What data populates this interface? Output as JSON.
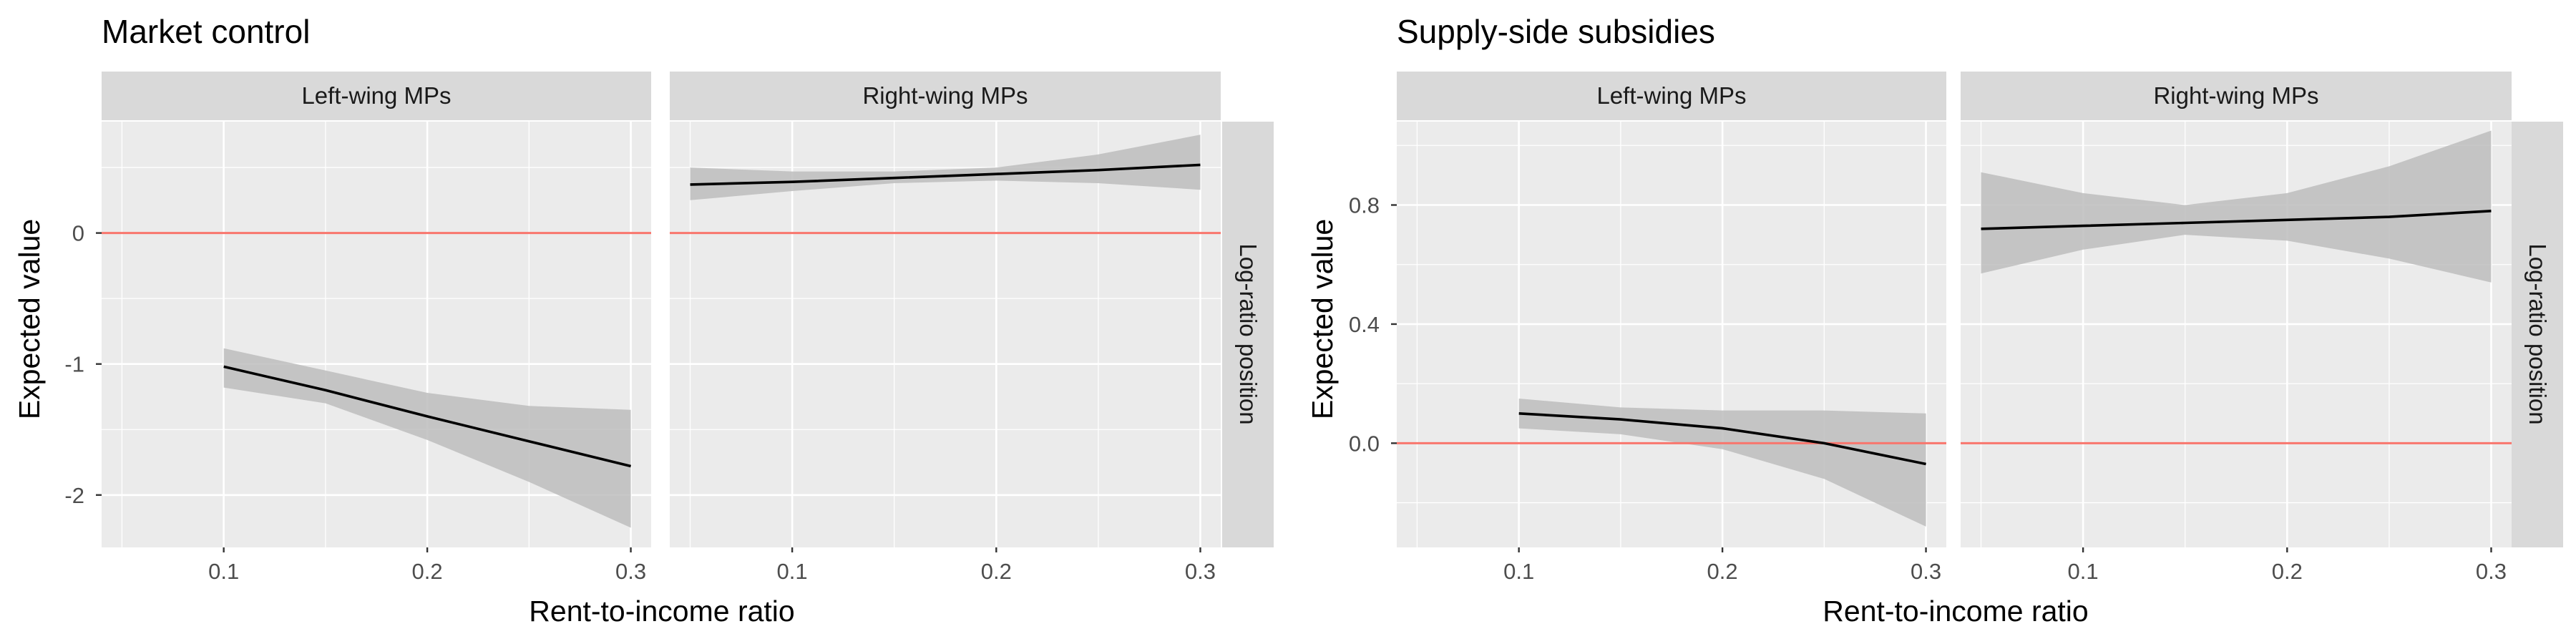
{
  "chart_data": [
    {
      "type": "line",
      "title": "Market control",
      "xlabel": "Rent-to-income ratio",
      "ylabel": "Expected value",
      "facet_right_label": "Log-ratio position",
      "xlim": [
        0.04,
        0.31
      ],
      "ylim": [
        -2.4,
        0.85
      ],
      "x_ticks": [
        0.1,
        0.2,
        0.3
      ],
      "x_tick_labels": [
        "0.1",
        "0.2",
        "0.3"
      ],
      "y_ticks": [
        -2,
        -1,
        0
      ],
      "y_tick_labels": [
        "-2",
        "-1",
        "0"
      ],
      "reference_line": 0,
      "grid": true,
      "colors": {
        "reference": "#f8766d",
        "line": "#000000",
        "ribbon": "#bdbdbd",
        "panel": "#ebebeb",
        "strip": "#d9d9d9"
      },
      "panels": [
        {
          "label": "Left-wing MPs",
          "x": [
            0.1,
            0.15,
            0.2,
            0.25,
            0.3
          ],
          "y": [
            -1.02,
            -1.2,
            -1.4,
            -1.59,
            -1.78
          ],
          "lower": [
            -1.18,
            -1.3,
            -1.58,
            -1.9,
            -2.25
          ],
          "upper": [
            -0.88,
            -1.05,
            -1.22,
            -1.32,
            -1.35
          ]
        },
        {
          "label": "Right-wing MPs",
          "x": [
            0.05,
            0.1,
            0.15,
            0.2,
            0.25,
            0.3
          ],
          "y": [
            0.37,
            0.39,
            0.42,
            0.45,
            0.48,
            0.52
          ],
          "lower": [
            0.25,
            0.32,
            0.38,
            0.4,
            0.38,
            0.33
          ],
          "upper": [
            0.5,
            0.47,
            0.47,
            0.5,
            0.6,
            0.75
          ]
        }
      ]
    },
    {
      "type": "line",
      "title": "Supply-side subsidies",
      "xlabel": "Rent-to-income ratio",
      "ylabel": "Expected value",
      "facet_right_label": "Log-ratio position",
      "xlim": [
        0.04,
        0.31
      ],
      "ylim": [
        -0.35,
        1.08
      ],
      "x_ticks": [
        0.1,
        0.2,
        0.3
      ],
      "x_tick_labels": [
        "0.1",
        "0.2",
        "0.3"
      ],
      "y_ticks": [
        0,
        0.4,
        0.8
      ],
      "y_tick_labels": [
        "0.0",
        "0.4",
        "0.8"
      ],
      "reference_line": 0,
      "grid": true,
      "colors": {
        "reference": "#f8766d",
        "line": "#000000",
        "ribbon": "#bdbdbd",
        "panel": "#ebebeb",
        "strip": "#d9d9d9"
      },
      "panels": [
        {
          "label": "Left-wing MPs",
          "x": [
            0.1,
            0.15,
            0.2,
            0.25,
            0.3
          ],
          "y": [
            0.1,
            0.08,
            0.05,
            0.0,
            -0.07
          ],
          "lower": [
            0.05,
            0.03,
            -0.02,
            -0.12,
            -0.28
          ],
          "upper": [
            0.15,
            0.12,
            0.11,
            0.11,
            0.1
          ]
        },
        {
          "label": "Right-wing MPs",
          "x": [
            0.05,
            0.1,
            0.15,
            0.2,
            0.25,
            0.3
          ],
          "y": [
            0.72,
            0.73,
            0.74,
            0.75,
            0.76,
            0.78
          ],
          "lower": [
            0.57,
            0.65,
            0.7,
            0.68,
            0.62,
            0.54
          ],
          "upper": [
            0.91,
            0.84,
            0.8,
            0.84,
            0.93,
            1.05
          ]
        }
      ]
    }
  ]
}
